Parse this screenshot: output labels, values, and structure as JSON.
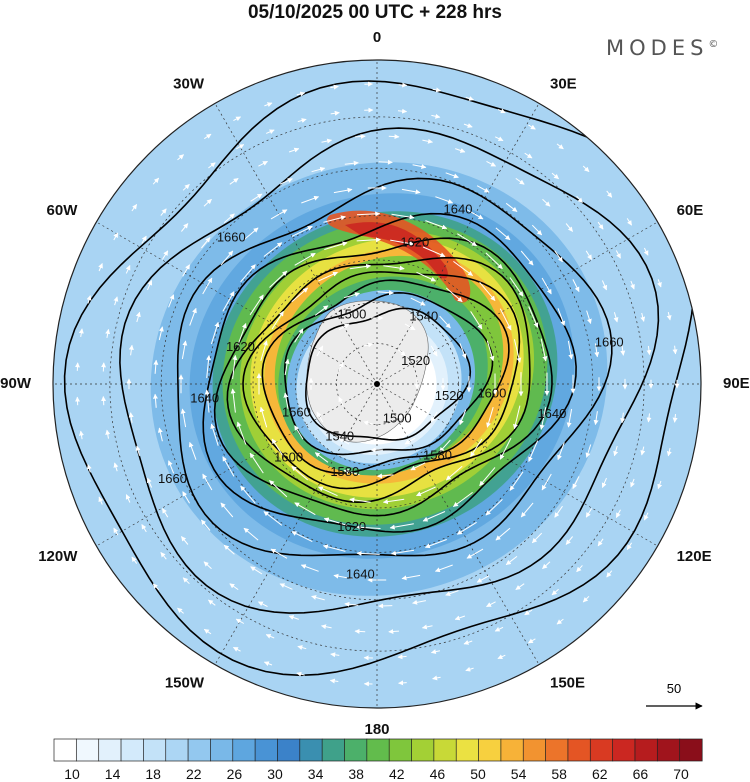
{
  "header": {
    "title": "05/10/2025  00 UTC  + 228 hrs",
    "brand": "MODES",
    "brand_mark": "©"
  },
  "map": {
    "projection": "south-polar-stereographic",
    "longitude_labels": [
      {
        "text": "0",
        "lon": 0
      },
      {
        "text": "30E",
        "lon": 30
      },
      {
        "text": "60E",
        "lon": 60
      },
      {
        "text": "90E",
        "lon": 90
      },
      {
        "text": "120E",
        "lon": 120
      },
      {
        "text": "150E",
        "lon": 150
      },
      {
        "text": "180",
        "lon": 180
      },
      {
        "text": "150W",
        "lon": -150
      },
      {
        "text": "120W",
        "lon": -120
      },
      {
        "text": "90W",
        "lon": -90
      },
      {
        "text": "60W",
        "lon": -60
      },
      {
        "text": "30W",
        "lon": -30
      }
    ],
    "contour_labels": [
      {
        "text": "1500",
        "lon": 20,
        "lat": -72
      },
      {
        "text": "1500",
        "lon": -150,
        "lat": -80
      },
      {
        "text": "1520",
        "lon": -60,
        "lat": -79
      },
      {
        "text": "1520",
        "lon": -100,
        "lat": -72
      },
      {
        "text": "1540",
        "lon": -35,
        "lat": -70
      },
      {
        "text": "1540",
        "lon": 145,
        "lat": -74
      },
      {
        "text": "1560",
        "lon": 110,
        "lat": -69
      },
      {
        "text": "1580",
        "lon": 160,
        "lat": -67
      },
      {
        "text": "1580",
        "lon": -140,
        "lat": -67
      },
      {
        "text": "1600",
        "lon": -95,
        "lat": -62
      },
      {
        "text": "1600",
        "lon": 130,
        "lat": -62
      },
      {
        "text": "1620",
        "lon": -15,
        "lat": -55
      },
      {
        "text": "1620",
        "lon": 170,
        "lat": -55
      },
      {
        "text": "1620",
        "lon": 75,
        "lat": -56
      },
      {
        "text": "1640",
        "lon": -25,
        "lat": -45
      },
      {
        "text": "1640",
        "lon": 95,
        "lat": -49
      },
      {
        "text": "1640",
        "lon": 175,
        "lat": -45
      },
      {
        "text": "1640",
        "lon": -100,
        "lat": -48
      },
      {
        "text": "1660",
        "lon": 45,
        "lat": -42
      },
      {
        "text": "1660",
        "lon": -80,
        "lat": -36
      },
      {
        "text": "1660",
        "lon": 115,
        "lat": -38
      }
    ],
    "vector_key": {
      "value": "50"
    }
  },
  "colorbar": {
    "ticks": [
      "10",
      "14",
      "18",
      "22",
      "26",
      "30",
      "34",
      "38",
      "42",
      "46",
      "50",
      "54",
      "58",
      "62",
      "66",
      "70"
    ],
    "colors": [
      "#ffffff",
      "#f0f8fe",
      "#e2f1fc",
      "#d3eafb",
      "#c3e2f8",
      "#acd6f4",
      "#93c8ef",
      "#79b8e8",
      "#5ea6df",
      "#4993d5",
      "#3b82c9",
      "#3a8fb0",
      "#3fa18a",
      "#4cb06a",
      "#62bc4c",
      "#7fc63c",
      "#a3d035",
      "#c8d937",
      "#ebe142",
      "#f7d03f",
      "#f7b238",
      "#f29330",
      "#ec742a",
      "#e45524",
      "#d93a22",
      "#cb2721",
      "#b61c1e",
      "#a0141c",
      "#8a0e1a"
    ]
  }
}
